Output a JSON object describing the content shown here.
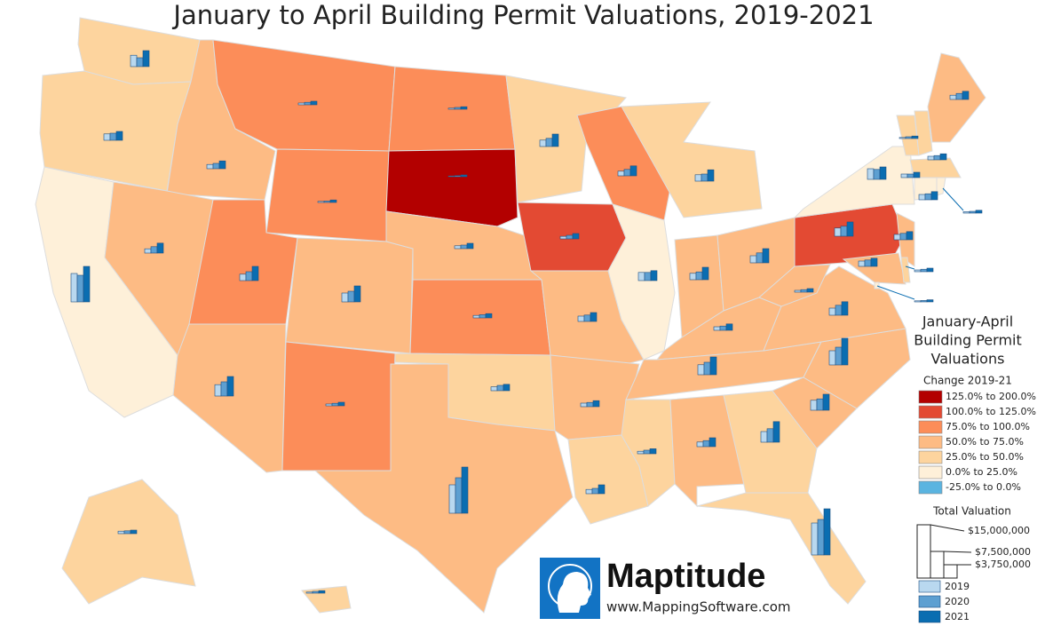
{
  "map": {
    "title": "January to April Building Permit Valuations, 2019-2021",
    "legend": {
      "title": [
        "January-April",
        "Building Permit",
        "Valuations"
      ],
      "change_title": "Change 2019-21",
      "classes": [
        {
          "label": "125.0% to 200.0%",
          "color": "#b30000"
        },
        {
          "label": "100.0% to 125.0%",
          "color": "#e34a33"
        },
        {
          "label": "75.0% to 100.0%",
          "color": "#fc8d59"
        },
        {
          "label": "50.0% to 75.0%",
          "color": "#fdbb84"
        },
        {
          "label": "25.0% to 50.0%",
          "color": "#fdd49e"
        },
        {
          "label": "0.0% to 25.0%",
          "color": "#fef0d9"
        },
        {
          "label": "-25.0% to 0.0%",
          "color": "#5ab4e0"
        }
      ],
      "size_title": "Total Valuation",
      "sizes": [
        {
          "value": 15000000,
          "label": "$15,000,000"
        },
        {
          "value": 7500000,
          "label": "$7,500,000"
        },
        {
          "value": 3750000,
          "label": "$3,750,000"
        }
      ],
      "years": [
        {
          "label": "2019",
          "color": "#b9d8ef"
        },
        {
          "label": "2020",
          "color": "#5d9fd1"
        },
        {
          "label": "2021",
          "color": "#0a6db1"
        }
      ]
    },
    "regions": [
      {
        "change_class": 4,
        "values": [
          3200000,
          2500000,
          4500000
        ]
      },
      {
        "change_class": 4,
        "values": [
          1800000,
          2000000,
          2500000
        ]
      },
      {
        "change_class": 5,
        "values": [
          8000000,
          7500000,
          10000000
        ]
      },
      {
        "change_class": 3,
        "values": [
          1200000,
          1500000,
          2200000
        ]
      },
      {
        "change_class": 3,
        "values": [
          1200000,
          1800000,
          2800000
        ]
      },
      {
        "change_class": 2,
        "values": [
          500000,
          700000,
          1000000
        ]
      },
      {
        "change_class": 2,
        "values": [
          300000,
          400000,
          700000
        ]
      },
      {
        "change_class": 2,
        "values": [
          1800000,
          2500000,
          4000000
        ]
      },
      {
        "change_class": 3,
        "values": [
          3200000,
          4000000,
          5500000
        ]
      },
      {
        "change_class": 3,
        "values": [
          2500000,
          3000000,
          4500000
        ]
      },
      {
        "change_class": 2,
        "values": [
          500000,
          700000,
          1000000
        ]
      },
      {
        "change_class": 2,
        "values": [
          300000,
          500000,
          700000
        ]
      },
      {
        "change_class": 0,
        "values": [
          200000,
          300000,
          500000
        ]
      },
      {
        "change_class": 3,
        "values": [
          800000,
          1000000,
          1500000
        ]
      },
      {
        "change_class": 2,
        "values": [
          700000,
          900000,
          1200000
        ]
      },
      {
        "change_class": 4,
        "values": [
          1100000,
          1500000,
          1800000
        ]
      },
      {
        "change_class": 3,
        "values": [
          8000000,
          10000000,
          13000000
        ]
      },
      {
        "change_class": 4,
        "values": [
          1800000,
          2300000,
          3500000
        ]
      },
      {
        "change_class": 1,
        "values": [
          700000,
          1000000,
          1500000
        ]
      },
      {
        "change_class": 3,
        "values": [
          1500000,
          1800000,
          2500000
        ]
      },
      {
        "change_class": 3,
        "values": [
          1000000,
          1200000,
          1700000
        ]
      },
      {
        "change_class": 4,
        "values": [
          1200000,
          1500000,
          2500000
        ]
      },
      {
        "change_class": 2,
        "values": [
          1300000,
          1800000,
          2800000
        ]
      },
      {
        "change_class": 5,
        "values": [
          2300000,
          2300000,
          2800000
        ]
      },
      {
        "change_class": 4,
        "values": [
          1800000,
          2000000,
          3200000
        ]
      },
      {
        "change_class": 3,
        "values": [
          1800000,
          2200000,
          3500000
        ]
      },
      {
        "change_class": 3,
        "values": [
          2000000,
          2800000,
          4000000
        ]
      },
      {
        "change_class": 3,
        "values": [
          1000000,
          1200000,
          1800000
        ]
      },
      {
        "change_class": 3,
        "values": [
          2800000,
          3500000,
          5000000
        ]
      },
      {
        "change_class": 4,
        "values": [
          700000,
          1000000,
          1400000
        ]
      },
      {
        "change_class": 3,
        "values": [
          1300000,
          1700000,
          2500000
        ]
      },
      {
        "change_class": 4,
        "values": [
          3000000,
          3800000,
          5800000
        ]
      },
      {
        "change_class": 4,
        "values": [
          9000000,
          10000000,
          13000000
        ]
      },
      {
        "change_class": 3,
        "values": [
          2800000,
          3200000,
          4500000
        ]
      },
      {
        "change_class": 3,
        "values": [
          4000000,
          5000000,
          7500000
        ]
      },
      {
        "change_class": 3,
        "values": [
          2000000,
          2800000,
          3800000
        ]
      },
      {
        "change_class": 3,
        "values": [
          500000,
          700000,
          1000000
        ]
      },
      {
        "change_class": 1,
        "values": [
          2300000,
          2800000,
          4000000
        ]
      },
      {
        "change_class": 5,
        "values": [
          3000000,
          2800000,
          3500000
        ]
      },
      {
        "change_class": 3,
        "values": [
          1200000,
          1700000,
          2300000
        ]
      },
      {
        "change_class": 4,
        "values": [
          300000,
          500000,
          700000
        ]
      },
      {
        "change_class": 4,
        "values": [
          1000000,
          1200000,
          1700000
        ]
      },
      {
        "change_class": 4,
        "values": [
          1500000,
          1700000,
          2300000
        ]
      },
      {
        "change_class": 5,
        "values": [
          1000000,
          1000000,
          1500000
        ]
      },
      {
        "change_class": 3,
        "values": [
          1500000,
          1800000,
          2300000
        ]
      },
      {
        "change_class": 3,
        "values": [
          1500000,
          1800000,
          2300000
        ]
      },
      {
        "change_class": 4,
        "values": [
          500000,
          700000,
          1000000
        ]
      },
      {
        "change_class": 4,
        "values": [
          700000,
          800000,
          1000000
        ]
      },
      {
        "change_class": 5,
        "values": [
          400000,
          500000,
          800000
        ]
      },
      {
        "change_class": 4,
        "values": [
          300000,
          500000,
          700000
        ]
      },
      {
        "change_class": 5,
        "values": [
          300000,
          400000,
          600000
        ]
      }
    ],
    "logo": {
      "name": "Maptitude",
      "url": "www.MappingSoftware.com"
    }
  }
}
